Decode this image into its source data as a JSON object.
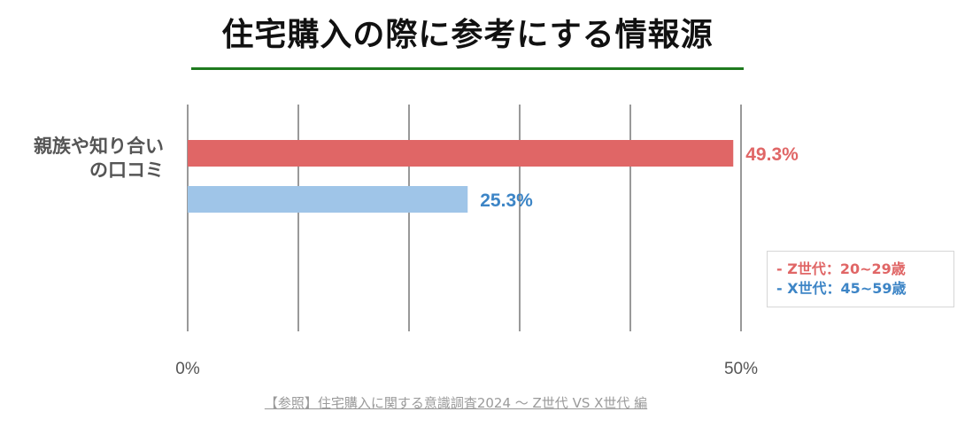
{
  "title": "住宅購入の際に参考にする情報源",
  "colors": {
    "title_underline": "#1f7a1f",
    "z_generation": "#e06666",
    "x_generation": "#9fc5e8",
    "x_generation_text": "#3d85c6",
    "gridline": "#333333"
  },
  "chart_data": {
    "type": "bar",
    "orientation": "horizontal",
    "title": "住宅購入の際に参考にする情報源",
    "categories": [
      "親族や知り合いの口コミ"
    ],
    "category_label_lines": [
      "親族や知り合い",
      "の口コミ"
    ],
    "series": [
      {
        "name": "Z世代：20~29歳",
        "values": [
          49.3
        ],
        "data_labels": [
          "49.3%"
        ]
      },
      {
        "name": "X世代：45~59歳",
        "values": [
          25.3
        ],
        "data_labels": [
          "25.3%"
        ]
      }
    ],
    "xlim": [
      0,
      50
    ],
    "gridline_values": [
      0,
      10,
      20,
      30,
      40,
      50
    ],
    "tick_labels": [
      {
        "value": 0,
        "label": "0%"
      },
      {
        "value": 50,
        "label": "50%"
      }
    ],
    "grid": true,
    "legend_position": "right"
  },
  "legend": {
    "items": [
      {
        "label": "- Z世代：20~29歳"
      },
      {
        "label": "- X世代：45~59歳"
      }
    ]
  },
  "source": "【参照】住宅購入に関する意識調査2024 〜 Z世代 VS X世代 編"
}
